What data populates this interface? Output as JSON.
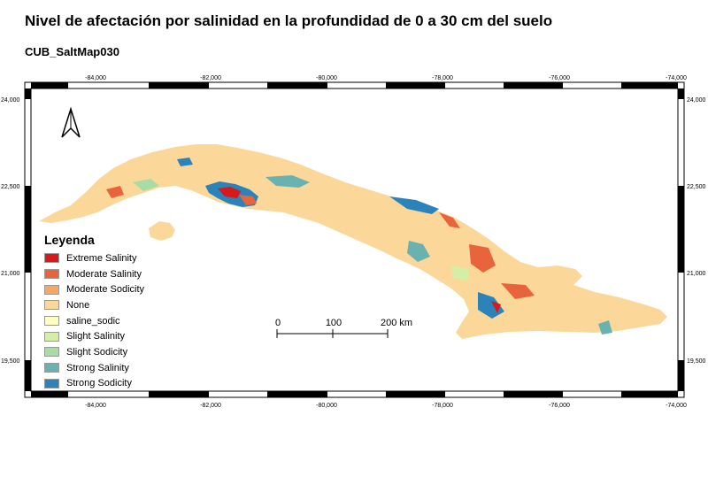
{
  "title": "Nivel de afectación por salinidad en la profundidad de 0 a 30 cm del suelo",
  "subtitle": "CUB_SaltMap030",
  "grid": {
    "x_labels": [
      "-84,000",
      "-82,000",
      "-80,000",
      "-78,000",
      "-76,000",
      "-74,000"
    ],
    "y_labels": [
      "24,000",
      "22,500",
      "21,000",
      "19,500"
    ]
  },
  "north_arrow": "north-arrow-icon",
  "legend": {
    "title": "Leyenda",
    "items": [
      {
        "label": "Extreme Salinity",
        "color": "#d7191c"
      },
      {
        "label": "Moderate Salinity",
        "color": "#e8643c"
      },
      {
        "label": "Moderate Sodicity",
        "color": "#f5a861"
      },
      {
        "label": "None",
        "color": "#fbd89a"
      },
      {
        "label": "saline_sodic",
        "color": "#ffffbf"
      },
      {
        "label": "Slight Salinity",
        "color": "#d4eea6"
      },
      {
        "label": "Slight Sodicity",
        "color": "#a8dca4"
      },
      {
        "label": "Strong Salinity",
        "color": "#6ab2b0"
      },
      {
        "label": "Strong Sodicity",
        "color": "#2b83ba"
      }
    ]
  },
  "scale_bar": {
    "labels": [
      "0",
      "100",
      "200 km"
    ]
  }
}
